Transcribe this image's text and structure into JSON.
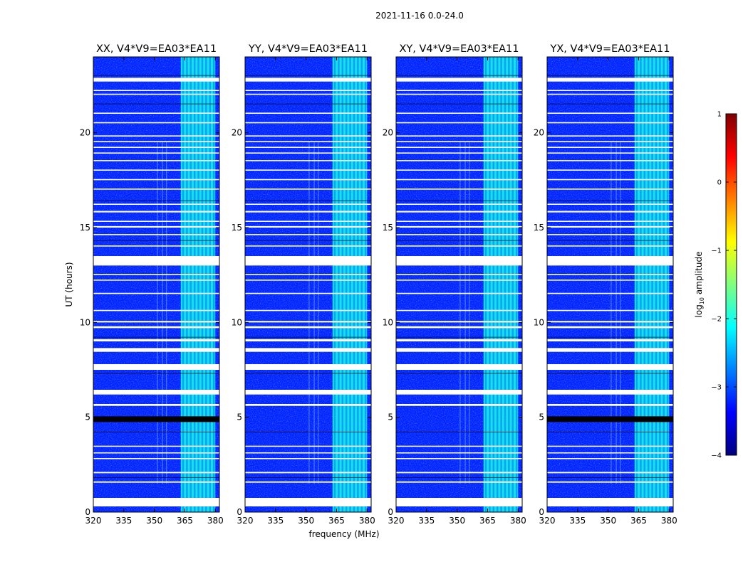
{
  "figure": {
    "suptitle": "2021-11-16 0.0-24.0",
    "xlabel": "frequency (MHz)",
    "ylabel": "UT (hours)"
  },
  "chart_data": {
    "type": "heatmap",
    "title": "2021-11-16 0.0-24.0",
    "xlabel": "frequency (MHz)",
    "ylabel": "UT (hours)",
    "xlim": [
      320,
      382
    ],
    "ylim": [
      0,
      24
    ],
    "xticks": [
      320,
      335,
      350,
      365,
      380
    ],
    "yticks": [
      0,
      5,
      10,
      15,
      20
    ],
    "panels": [
      {
        "title": "XX, V4*V9=EA03*EA11",
        "polarization": "XX",
        "show_ylabel": true
      },
      {
        "title": "YY, V4*V9=EA03*EA11",
        "polarization": "YY",
        "show_ylabel": false
      },
      {
        "title": "XY, V4*V9=EA03*EA11",
        "polarization": "XY",
        "show_ylabel": false
      },
      {
        "title": "YX, V4*V9=EA03*EA11",
        "polarization": "YX",
        "show_ylabel": false
      }
    ],
    "bright_band_mhz": [
      363,
      380
    ],
    "background_log10_amplitude": -3.2,
    "band_log10_amplitude": -2.0,
    "flagged_white_ut_ranges": [
      [
        0.3,
        0.75
      ],
      [
        1.55,
        1.62
      ],
      [
        2.05,
        2.12
      ],
      [
        2.8,
        2.85
      ],
      [
        3.1,
        3.15
      ],
      [
        3.45,
        3.5
      ],
      [
        5.6,
        5.7
      ],
      [
        6.2,
        6.45
      ],
      [
        7.5,
        7.8
      ],
      [
        8.45,
        8.65
      ],
      [
        9.0,
        9.12
      ],
      [
        9.7,
        9.8
      ],
      [
        10.0,
        10.08
      ],
      [
        10.6,
        10.66
      ],
      [
        11.5,
        11.56
      ],
      [
        12.2,
        12.26
      ],
      [
        12.5,
        12.56
      ],
      [
        13.0,
        13.5
      ],
      [
        14.0,
        14.06
      ],
      [
        14.6,
        14.66
      ],
      [
        15.0,
        15.08
      ],
      [
        15.3,
        15.36
      ],
      [
        15.8,
        15.88
      ],
      [
        16.2,
        16.26
      ],
      [
        17.0,
        17.06
      ],
      [
        17.5,
        17.56
      ],
      [
        18.0,
        18.06
      ],
      [
        18.5,
        18.56
      ],
      [
        18.9,
        18.96
      ],
      [
        19.2,
        19.26
      ],
      [
        19.5,
        19.56
      ],
      [
        19.8,
        19.86
      ],
      [
        20.5,
        20.56
      ],
      [
        21.0,
        21.06
      ],
      [
        22.0,
        22.06
      ],
      [
        22.2,
        22.26
      ],
      [
        22.7,
        22.9
      ]
    ],
    "flagged_black_ut_ranges": [
      [
        4.75,
        5.05
      ],
      [
        1.8,
        1.84
      ],
      [
        4.2,
        4.24
      ],
      [
        7.3,
        7.34
      ],
      [
        9.2,
        9.24
      ],
      [
        14.3,
        14.34
      ],
      [
        16.4,
        16.44
      ],
      [
        21.5,
        21.54
      ],
      [
        23.0,
        23.04
      ]
    ],
    "black_band_panels": [
      "XX",
      "YX"
    ],
    "colorbar": {
      "label": "log10 amplitude",
      "label_base": "log",
      "label_sub": "10",
      "label_rest": " amplitude",
      "range": [
        -4,
        1
      ],
      "ticks": [
        -4,
        -3,
        -2,
        -1,
        0,
        1
      ],
      "tick_labels": [
        "−4",
        "−3",
        "−2",
        "−1",
        "0",
        "1"
      ],
      "colormap": "jet"
    }
  }
}
